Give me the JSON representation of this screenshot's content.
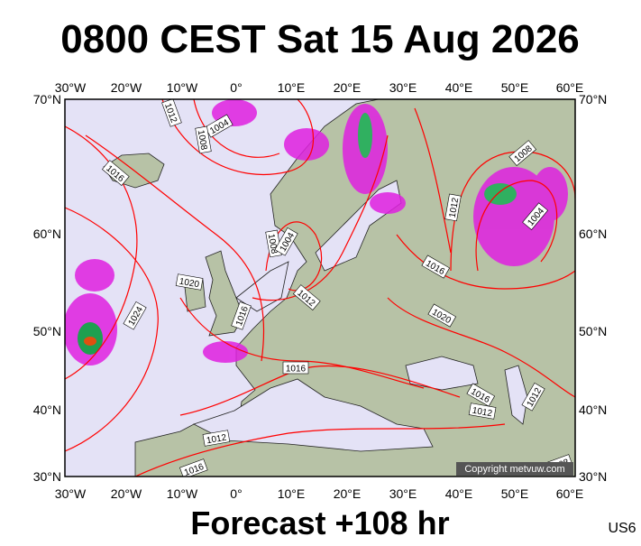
{
  "title": "0800 CEST Sat 15 Aug 2026",
  "footer": "Forecast +108 hr",
  "model_code": "US6",
  "copyright": "Copyright metvuw.com",
  "longitude_labels": [
    "30°W",
    "20°W",
    "10°W",
    "0°",
    "10°E",
    "20°E",
    "30°E",
    "40°E",
    "50°E",
    "60°E"
  ],
  "latitude_labels": [
    "70°N",
    "60°N",
    "50°N",
    "40°N",
    "30°N"
  ],
  "isobar_labels": [
    "1012",
    "1004",
    "1008",
    "1016",
    "1008",
    "1004",
    "1012",
    "1020",
    "1024",
    "1016",
    "1016",
    "1012",
    "1016",
    "1012",
    "1008",
    "1004",
    "1016",
    "1020",
    "1016",
    "1012",
    "1012",
    "1008"
  ]
}
